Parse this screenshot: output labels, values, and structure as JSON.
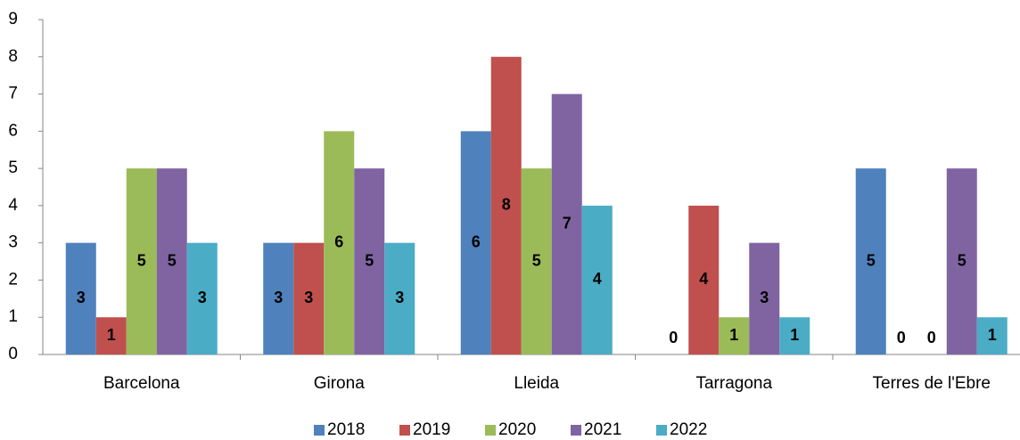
{
  "chart_data": {
    "type": "bar",
    "categories": [
      "Barcelona",
      "Girona",
      "Lleida",
      "Tarragona",
      "Terres de l'Ebre"
    ],
    "series": [
      {
        "name": "2018",
        "color": "#4f81bd",
        "values": [
          3,
          3,
          6,
          0,
          5
        ]
      },
      {
        "name": "2019",
        "color": "#c0504d",
        "values": [
          1,
          3,
          8,
          4,
          0
        ]
      },
      {
        "name": "2020",
        "color": "#9bbb59",
        "values": [
          5,
          6,
          5,
          1,
          0
        ]
      },
      {
        "name": "2021",
        "color": "#8064a2",
        "values": [
          5,
          5,
          7,
          3,
          5
        ]
      },
      {
        "name": "2022",
        "color": "#4bacc6",
        "values": [
          3,
          3,
          4,
          1,
          1
        ]
      }
    ],
    "ylim": [
      0,
      9
    ],
    "yticks": [
      0,
      1,
      2,
      3,
      4,
      5,
      6,
      7,
      8,
      9
    ],
    "grid": false,
    "legend": "bottom"
  }
}
